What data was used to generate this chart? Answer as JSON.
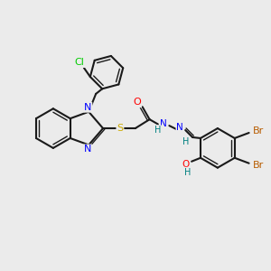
{
  "bg_color": "#ebebeb",
  "bond_color": "#1a1a1a",
  "atom_colors": {
    "N": "#0000ff",
    "S": "#ccaa00",
    "O": "#ff0000",
    "Cl": "#00cc00",
    "Br": "#b85c00",
    "H": "#008080"
  }
}
